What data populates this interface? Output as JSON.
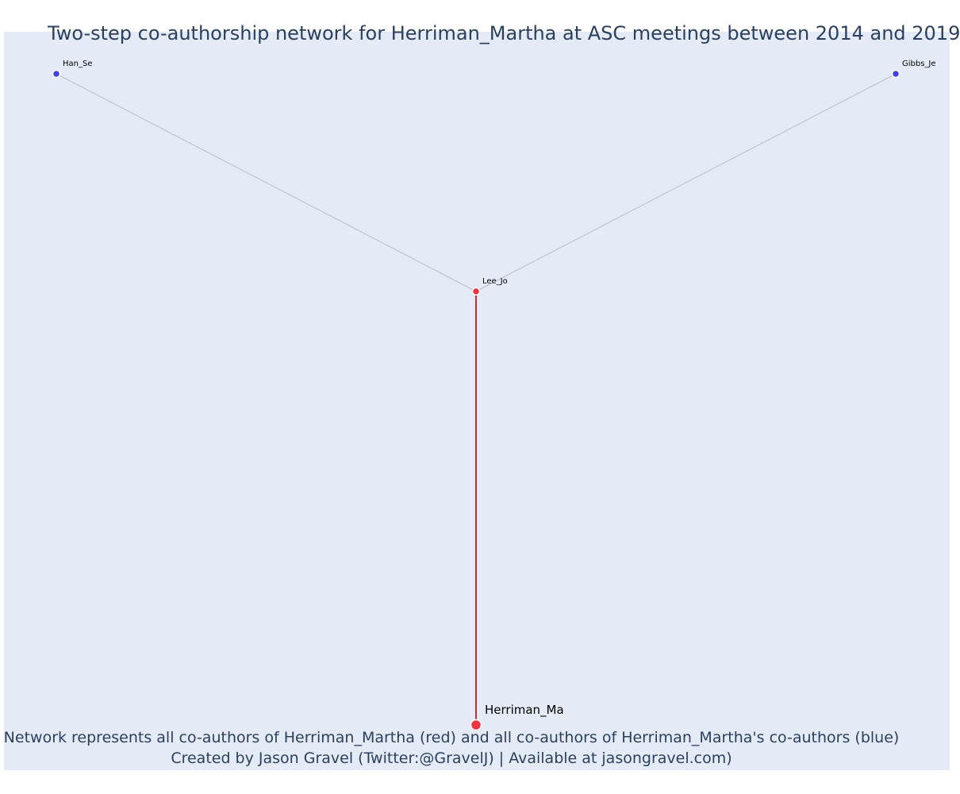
{
  "title": "Two-step co-authorship network for Herriman_Martha at ASC meetings between 2014 and 2019",
  "caption_line1": "Network represents all co-authors of Herriman_Martha (red) and all co-authors of Herriman_Martha's co-authors (blue)",
  "caption_line2": "Created by Jason Gravel (Twitter:@GravelJ) | Available at jasongravel.com)",
  "colors": {
    "background": "#e5ebf6",
    "focal": "#ef3340",
    "coauthor": "#ef3340",
    "second_step": "#4141e6",
    "edge_focal": "#d62728",
    "edge_other": "#b8bccb",
    "text": "#2a3f5f"
  },
  "nodes": [
    {
      "id": "Han_Se",
      "label": "Han_Se",
      "group": "second-step"
    },
    {
      "id": "Gibbs_Je",
      "label": "Gibbs_Je",
      "group": "second-step"
    },
    {
      "id": "Lee_Jo",
      "label": "Lee_Jo",
      "group": "co-author"
    },
    {
      "id": "Herriman_Ma",
      "label": "Herriman_Ma",
      "group": "focal"
    }
  ],
  "edges": [
    {
      "source": "Lee_Jo",
      "target": "Han_Se",
      "type": "second-step"
    },
    {
      "source": "Lee_Jo",
      "target": "Gibbs_Je",
      "type": "second-step"
    },
    {
      "source": "Lee_Jo",
      "target": "Herriman_Ma",
      "type": "focal"
    }
  ]
}
